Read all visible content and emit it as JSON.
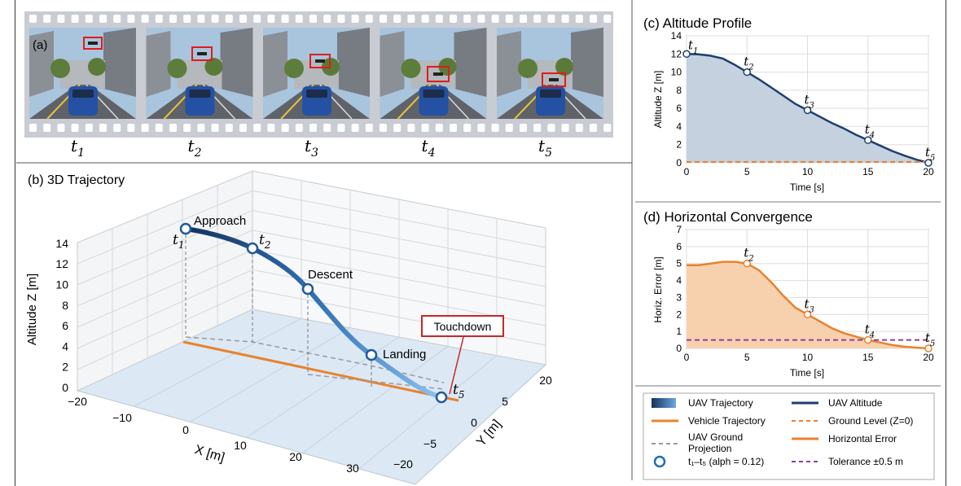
{
  "panel_a": {
    "label": "(a)",
    "frames": [
      {
        "time": "t",
        "sub": "1"
      },
      {
        "time": "t",
        "sub": "2"
      },
      {
        "time": "t",
        "sub": "3"
      },
      {
        "time": "t",
        "sub": "4"
      },
      {
        "time": "t",
        "sub": "5"
      }
    ]
  },
  "chart_data": [
    {
      "id": "b",
      "type": "line",
      "title": "(b) 3D Trajectory",
      "xlabel": "X [m]",
      "ylabel": "Y [m]",
      "zlabel": "Altitude Z [m]",
      "x_ticks": [
        "−20",
        "−10",
        "0",
        "10",
        "20",
        "30"
      ],
      "y_ticks": [
        "−20",
        "−5",
        "0",
        "5",
        "20"
      ],
      "z_ticks": [
        "0",
        "2",
        "4",
        "6",
        "8",
        "10",
        "12",
        "14"
      ],
      "points": [
        {
          "label": "t",
          "sub": "1",
          "note": "Approach"
        },
        {
          "label": "t",
          "sub": "2",
          "note": ""
        },
        {
          "label": "",
          "sub": "",
          "note": "Descent"
        },
        {
          "label": "",
          "sub": "",
          "note": "Landing"
        },
        {
          "label": "t",
          "sub": "5",
          "note": ""
        }
      ],
      "callout": "Touchdown"
    },
    {
      "id": "c",
      "type": "area",
      "title": "(c) Altitude Profile",
      "xlabel": "Time [s]",
      "ylabel": "Altitude Z [m]",
      "xlim": [
        0,
        20
      ],
      "ylim": [
        0,
        14
      ],
      "x_ticks": [
        0,
        5,
        10,
        15,
        20
      ],
      "y_ticks": [
        0,
        2,
        4,
        6,
        8,
        10,
        12,
        14
      ],
      "series": [
        {
          "name": "UAV Altitude",
          "color": "#1d3f6e",
          "x": [
            0,
            1,
            2,
            3,
            4,
            5,
            6,
            7,
            8,
            9,
            10,
            11,
            12,
            13,
            14,
            15,
            16,
            17,
            18,
            19,
            20
          ],
          "y": [
            12,
            11.95,
            11.8,
            11.5,
            10.8,
            10,
            9.2,
            8.3,
            7.4,
            6.5,
            5.8,
            5.1,
            4.4,
            3.8,
            3.1,
            2.5,
            1.9,
            1.3,
            0.8,
            0.35,
            0
          ]
        },
        {
          "name": "Ground Level (Z=0)",
          "color": "#e8822d",
          "x": [
            0,
            20
          ],
          "y": [
            0.1,
            0.1
          ]
        }
      ],
      "markers": [
        {
          "x": 0,
          "y": 12,
          "label": "t",
          "sub": "1"
        },
        {
          "x": 5,
          "y": 10,
          "label": "t",
          "sub": "2"
        },
        {
          "x": 10,
          "y": 5.8,
          "label": "t",
          "sub": "3"
        },
        {
          "x": 15,
          "y": 2.5,
          "label": "t",
          "sub": "4"
        },
        {
          "x": 20,
          "y": 0,
          "label": "t",
          "sub": "5"
        }
      ]
    },
    {
      "id": "d",
      "type": "area",
      "title": "(d) Horizontal Convergence",
      "xlabel": "Time [s]",
      "ylabel": "Horiz. Error [m]",
      "xlim": [
        0,
        20
      ],
      "ylim": [
        0,
        7
      ],
      "x_ticks": [
        0,
        5,
        10,
        15,
        20
      ],
      "y_ticks": [
        0,
        1,
        2,
        3,
        4,
        5,
        6,
        7
      ],
      "series": [
        {
          "name": "Horizontal Error",
          "color": "#e8822d",
          "x": [
            0,
            1,
            2,
            3,
            4,
            5,
            6,
            7,
            8,
            9,
            10,
            11,
            12,
            13,
            14,
            15,
            16,
            17,
            18,
            19,
            20
          ],
          "y": [
            4.9,
            4.9,
            5.0,
            5.1,
            5.1,
            5.0,
            4.6,
            3.9,
            3.1,
            2.4,
            2.0,
            1.6,
            1.2,
            0.9,
            0.7,
            0.5,
            0.35,
            0.2,
            0.1,
            0.05,
            0
          ]
        },
        {
          "name": "Tolerance ±0.5 m",
          "color": "#8e3fa6",
          "x": [
            0,
            20
          ],
          "y": [
            0.5,
            0.5
          ]
        }
      ],
      "markers": [
        {
          "x": 5,
          "y": 5,
          "label": "t",
          "sub": "2"
        },
        {
          "x": 10,
          "y": 2.0,
          "label": "t",
          "sub": "3"
        },
        {
          "x": 15,
          "y": 0.5,
          "label": "t",
          "sub": "4"
        },
        {
          "x": 20,
          "y": 0,
          "label": "t",
          "sub": "5"
        }
      ]
    }
  ],
  "legend": {
    "items": [
      {
        "label": "UAV Trajectory",
        "kind": "gradient"
      },
      {
        "label": "UAV Altitude",
        "kind": "line-navy"
      },
      {
        "label": "Vehicle Trajectory",
        "kind": "line-orange"
      },
      {
        "label": "Ground Level (Z=0)",
        "kind": "dash-orange"
      },
      {
        "label": "UAV Ground Projection",
        "kind": "dash-gray"
      },
      {
        "label": "Horizontal Error",
        "kind": "line-orange"
      },
      {
        "label": "t₁–t₅ (alph = 0.12)",
        "kind": "circle"
      },
      {
        "label": "Tolerance ±0.5 m",
        "kind": "dash-purple"
      }
    ]
  }
}
